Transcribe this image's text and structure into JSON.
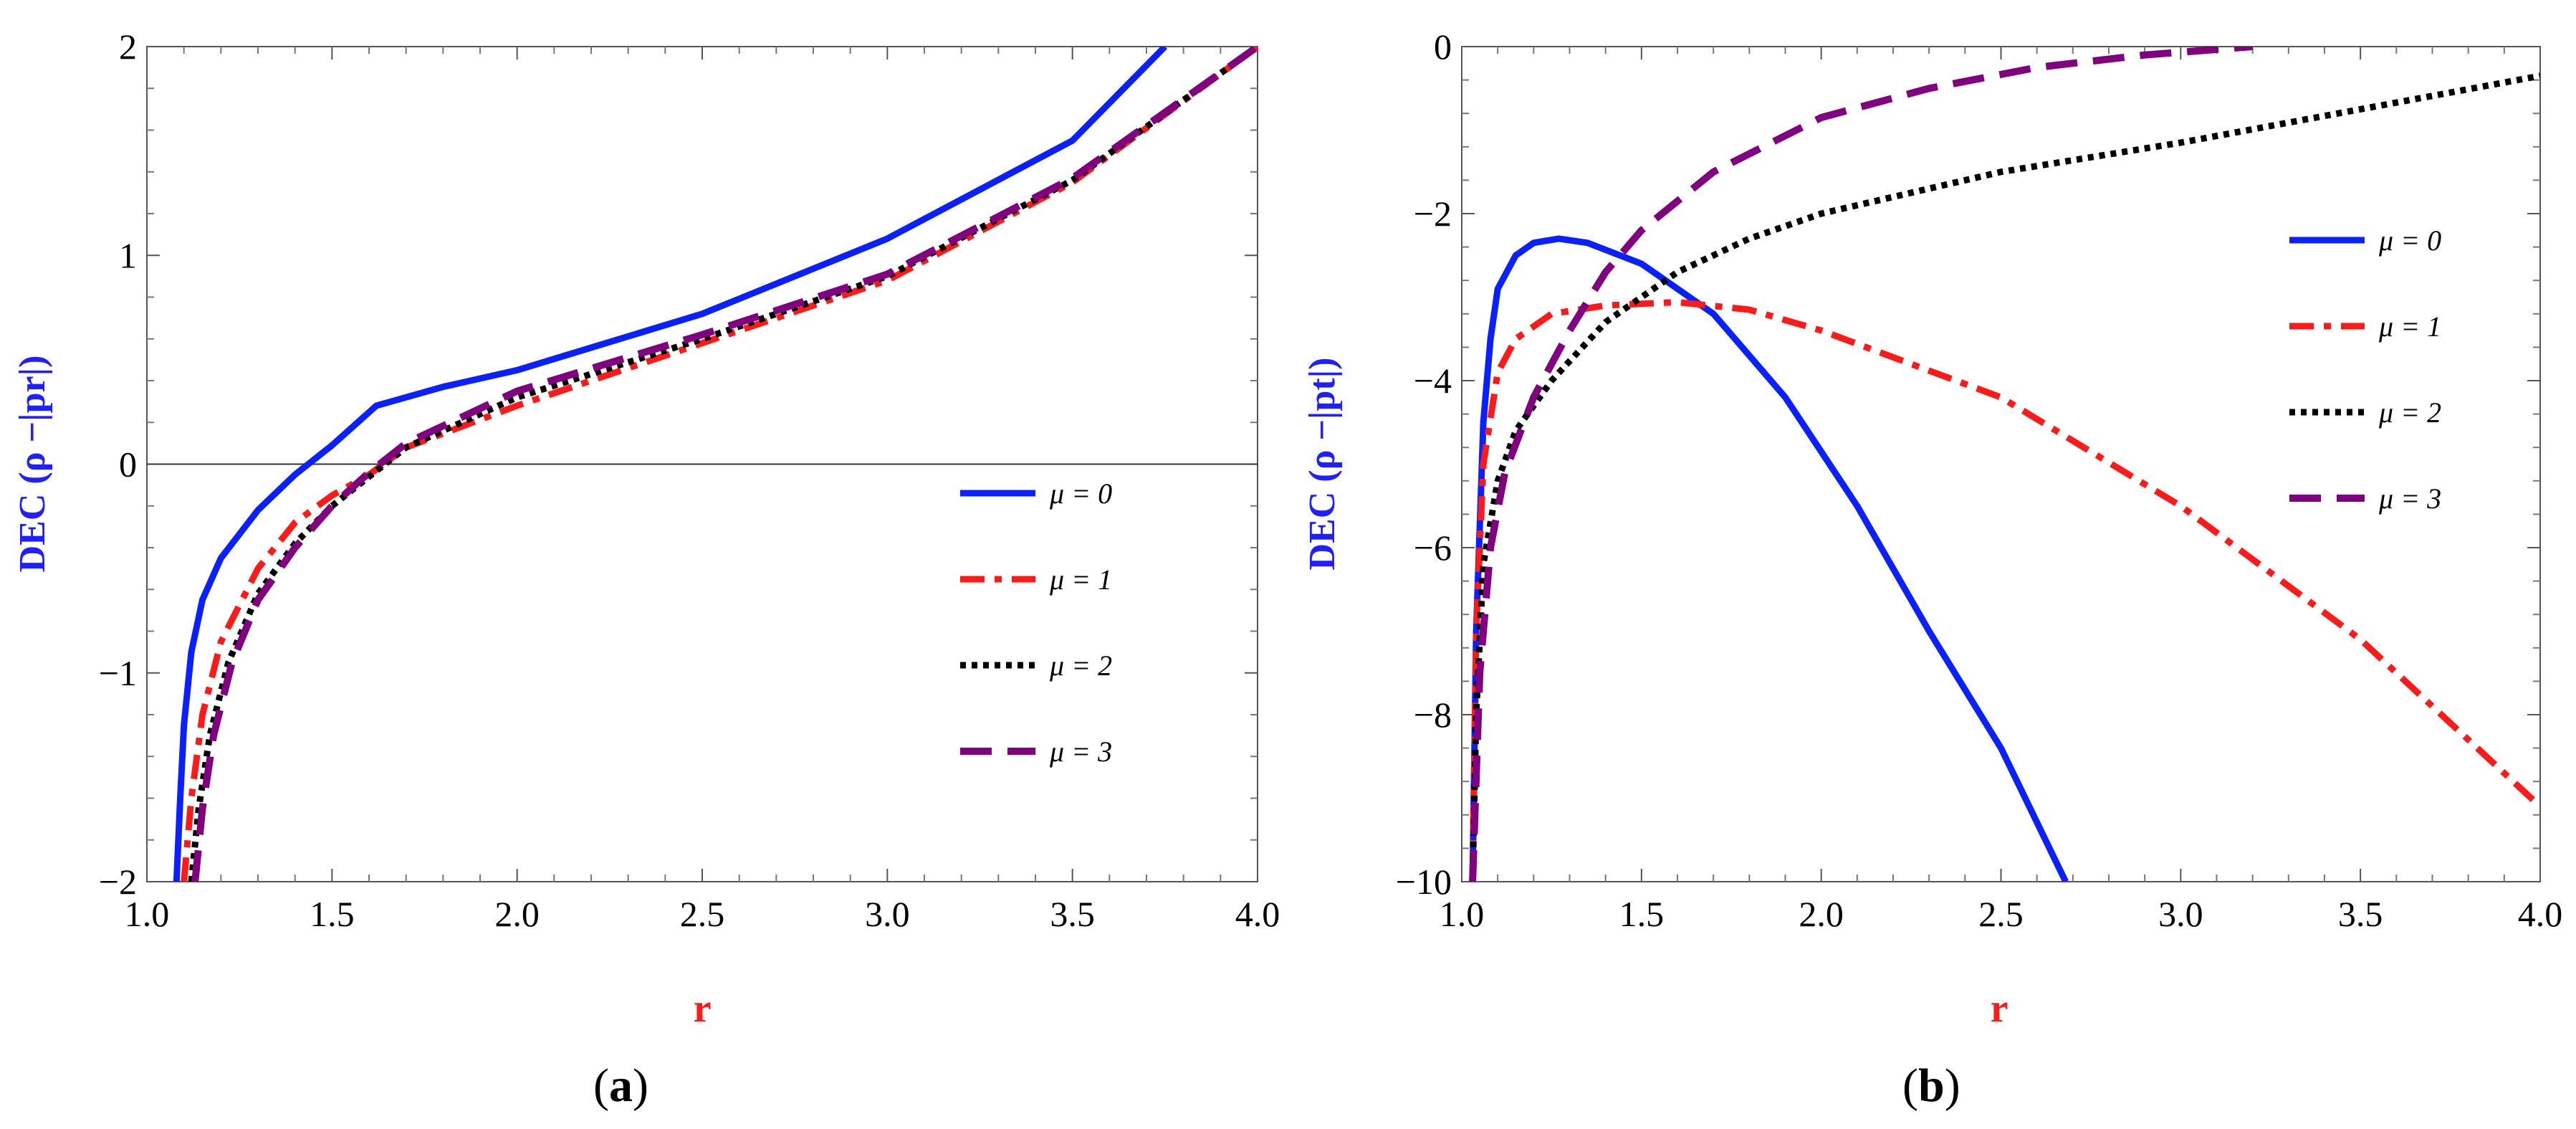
{
  "chart_data": [
    {
      "type": "line",
      "panel_label": [
        "(",
        "a",
        ")"
      ],
      "xlabel": "r",
      "ylabel": "DEC (ρ −|pr|)",
      "xlim": [
        1.0,
        4.0
      ],
      "ylim": [
        -2,
        2
      ],
      "xticks": [
        "1.0",
        "1.5",
        "2.0",
        "2.5",
        "3.0",
        "3.5",
        "4.0"
      ],
      "yticks": [
        "−2",
        "−1",
        "0",
        "1",
        "2"
      ],
      "reference_line_y": 0,
      "series": [
        {
          "name": "μ = 0",
          "style": "solid",
          "color": "#0a20ff",
          "x": [
            1.08,
            1.09,
            1.1,
            1.12,
            1.15,
            1.2,
            1.3,
            1.4,
            1.5,
            1.62,
            1.8,
            2.0,
            2.5,
            3.0,
            3.5,
            3.75
          ],
          "y": [
            -2.0,
            -1.6,
            -1.25,
            -0.9,
            -0.65,
            -0.45,
            -0.22,
            -0.05,
            0.09,
            0.28,
            0.37,
            0.45,
            0.72,
            1.08,
            1.55,
            2.0
          ]
        },
        {
          "name": "μ = 1",
          "style": "dashdot",
          "color": "#ff1a1a",
          "x": [
            1.1,
            1.12,
            1.15,
            1.2,
            1.3,
            1.4,
            1.5,
            1.6,
            1.7,
            2.0,
            2.5,
            3.0,
            3.5,
            4.0
          ],
          "y": [
            -2.0,
            -1.6,
            -1.2,
            -0.85,
            -0.5,
            -0.28,
            -0.15,
            -0.05,
            0.08,
            0.28,
            0.58,
            0.88,
            1.35,
            2.0
          ]
        },
        {
          "name": "μ = 2",
          "style": "dotted",
          "color": "#000000",
          "x": [
            1.12,
            1.14,
            1.17,
            1.22,
            1.3,
            1.4,
            1.5,
            1.6,
            1.7,
            2.0,
            2.5,
            3.0,
            3.5,
            4.0
          ],
          "y": [
            -2.0,
            -1.65,
            -1.3,
            -0.95,
            -0.62,
            -0.38,
            -0.2,
            -0.06,
            0.08,
            0.32,
            0.6,
            0.9,
            1.36,
            2.0
          ]
        },
        {
          "name": "μ = 3",
          "style": "dashed",
          "color": "#800080",
          "x": [
            1.13,
            1.15,
            1.18,
            1.23,
            1.3,
            1.4,
            1.5,
            1.6,
            1.7,
            2.0,
            2.5,
            3.0,
            3.5,
            4.0
          ],
          "y": [
            -2.0,
            -1.65,
            -1.3,
            -0.95,
            -0.65,
            -0.4,
            -0.2,
            -0.04,
            0.1,
            0.35,
            0.62,
            0.91,
            1.37,
            2.0
          ]
        }
      ],
      "legend_position": "center-right"
    },
    {
      "type": "line",
      "panel_label": [
        "(",
        "b",
        ")"
      ],
      "xlabel": "r",
      "ylabel": "DEC (ρ −|pt|)",
      "xlim": [
        1.0,
        4.0
      ],
      "ylim": [
        -10,
        0
      ],
      "xticks": [
        "1.0",
        "1.5",
        "2.0",
        "2.5",
        "3.0",
        "3.5",
        "4.0"
      ],
      "yticks": [
        "−10",
        "−8",
        "−6",
        "−4",
        "−2",
        "0"
      ],
      "series": [
        {
          "name": "μ = 0",
          "style": "solid",
          "color": "#0a20ff",
          "x": [
            1.03,
            1.04,
            1.06,
            1.08,
            1.1,
            1.15,
            1.2,
            1.27,
            1.35,
            1.5,
            1.7,
            1.9,
            2.1,
            2.3,
            2.5,
            2.68
          ],
          "y": [
            -10.0,
            -7.0,
            -4.5,
            -3.5,
            -2.9,
            -2.5,
            -2.35,
            -2.3,
            -2.35,
            -2.6,
            -3.2,
            -4.2,
            -5.5,
            -7.0,
            -8.4,
            -10.0
          ]
        },
        {
          "name": "μ = 1",
          "style": "dashdot",
          "color": "#ff1a1a",
          "x": [
            1.03,
            1.04,
            1.06,
            1.1,
            1.15,
            1.25,
            1.4,
            1.6,
            1.8,
            2.0,
            2.5,
            3.0,
            3.5,
            4.0
          ],
          "y": [
            -10.0,
            -7.0,
            -5.0,
            -3.9,
            -3.5,
            -3.2,
            -3.1,
            -3.06,
            -3.15,
            -3.4,
            -4.2,
            -5.5,
            -7.1,
            -9.1
          ]
        },
        {
          "name": "μ = 2",
          "style": "dotted",
          "color": "#000000",
          "x": [
            1.03,
            1.04,
            1.06,
            1.1,
            1.15,
            1.25,
            1.4,
            1.6,
            1.8,
            2.0,
            2.5,
            3.0,
            3.5,
            4.0
          ],
          "y": [
            -10.0,
            -8.0,
            -6.2,
            -5.2,
            -4.6,
            -4.0,
            -3.3,
            -2.7,
            -2.3,
            -2.0,
            -1.5,
            -1.15,
            -0.75,
            -0.35
          ]
        },
        {
          "name": "μ = 3",
          "style": "dashed",
          "color": "#800080",
          "x": [
            1.03,
            1.05,
            1.08,
            1.12,
            1.2,
            1.3,
            1.4,
            1.5,
            1.7,
            2.0,
            2.3,
            2.6,
            2.9,
            3.2
          ],
          "y": [
            -10.0,
            -7.5,
            -6.0,
            -5.1,
            -4.2,
            -3.4,
            -2.7,
            -2.2,
            -1.5,
            -0.85,
            -0.5,
            -0.25,
            -0.1,
            0.0
          ]
        }
      ],
      "legend_position": "center-right"
    }
  ]
}
